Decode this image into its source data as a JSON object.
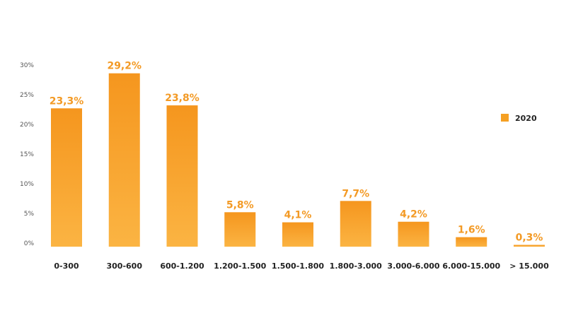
{
  "chart_data": {
    "type": "bar",
    "categories": [
      "0-300",
      "300-600",
      "600-1.200",
      "1.200-1.500",
      "1.500-1.800",
      "1.800-3.000",
      "3.000-6.000",
      "6.000-15.000",
      "> 15.000"
    ],
    "series": [
      {
        "name": "2020",
        "values": [
          23.3,
          29.2,
          23.8,
          5.8,
          4.1,
          7.7,
          4.2,
          1.6,
          0.3
        ],
        "labels": [
          "23,3%",
          "29,2%",
          "23,8%",
          "5,8%",
          "4,1%",
          "7,7%",
          "4,2%",
          "1,6%",
          "0,3%"
        ]
      }
    ],
    "yticks": [
      0,
      5,
      10,
      15,
      20,
      25,
      30
    ],
    "ytick_labels": [
      "0%",
      "5%",
      "10%",
      "15%",
      "20%",
      "25%",
      "30%"
    ],
    "ylim": [
      0,
      30
    ],
    "grid": false,
    "legend_position": "right",
    "colors": {
      "bar_top": "#f5961e",
      "bar_bottom": "#fbb443",
      "label": "#f39a25",
      "legend": "#f5a023"
    }
  }
}
